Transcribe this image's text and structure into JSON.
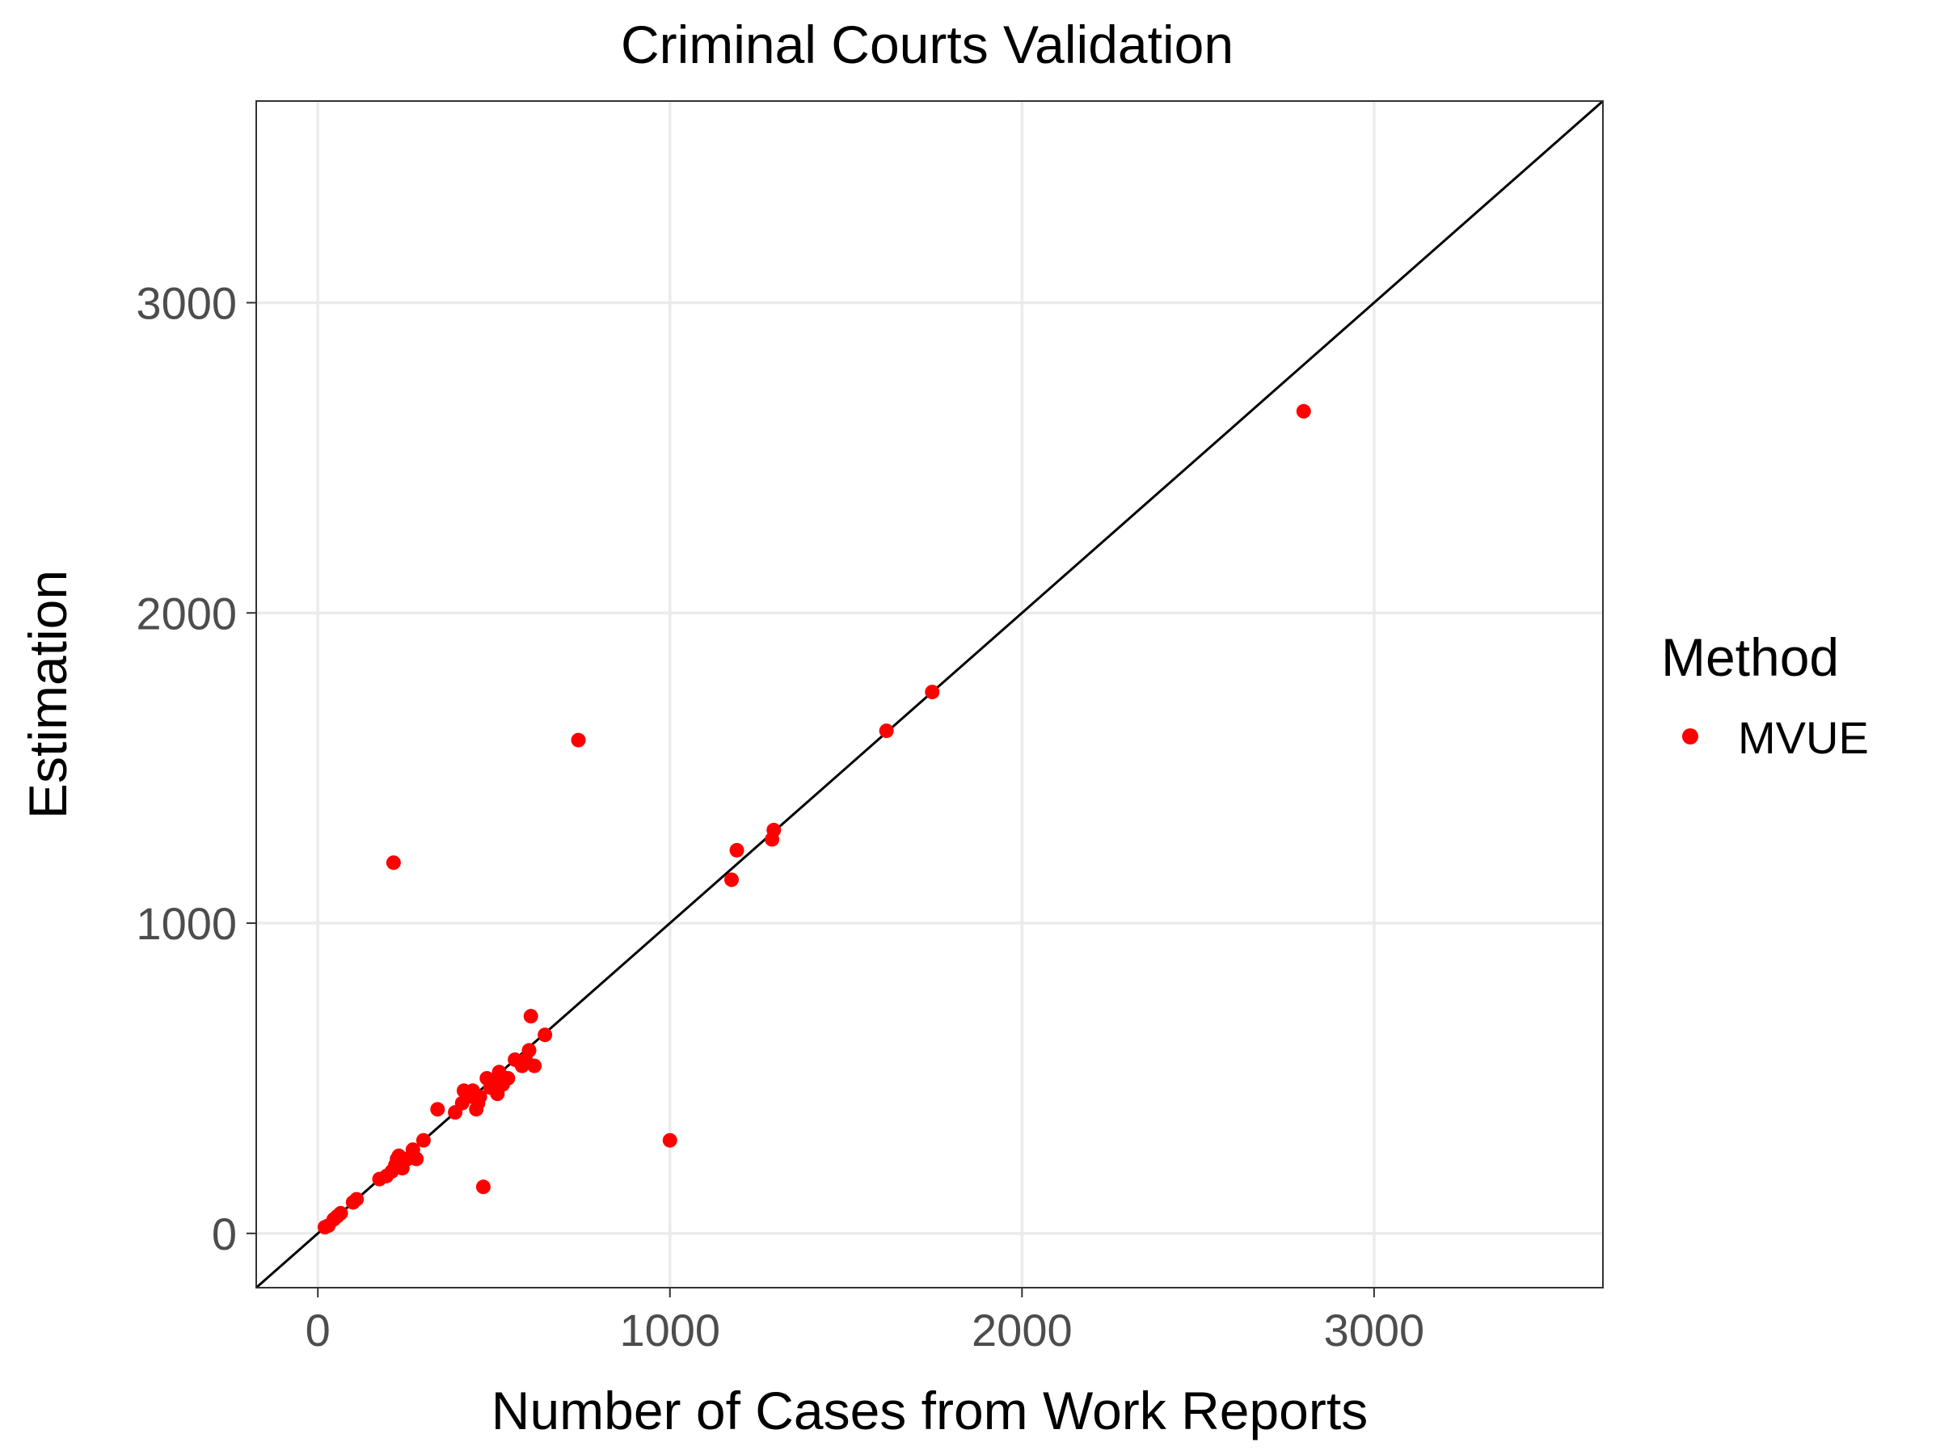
{
  "chart_data": {
    "type": "scatter",
    "title": "Criminal Courts Validation",
    "xlabel": "Number of Cases from Work Reports",
    "ylabel": "Estimation",
    "xlim": [
      -175,
      3650
    ],
    "ylim": [
      -175,
      3650
    ],
    "x_ticks": [
      0,
      1000,
      2000,
      3000
    ],
    "y_ticks": [
      0,
      1000,
      2000,
      3000
    ],
    "x_tick_labels": [
      "0",
      "1000",
      "2000",
      "3000"
    ],
    "y_tick_labels": [
      "0",
      "1000",
      "2000",
      "3000"
    ],
    "grid": true,
    "reference_line": {
      "type": "identity",
      "slope": 1,
      "intercept": 0,
      "color": "#000000"
    },
    "legend": {
      "title": "Method",
      "position": "right",
      "entries": [
        {
          "name": "MVUE",
          "color": "#ff0000"
        }
      ]
    },
    "series": [
      {
        "name": "MVUE",
        "color": "#ff0000",
        "points": [
          [
            20,
            20
          ],
          [
            30,
            25
          ],
          [
            45,
            45
          ],
          [
            55,
            55
          ],
          [
            65,
            65
          ],
          [
            100,
            100
          ],
          [
            110,
            110
          ],
          [
            175,
            175
          ],
          [
            195,
            185
          ],
          [
            210,
            200
          ],
          [
            220,
            220
          ],
          [
            225,
            240
          ],
          [
            230,
            250
          ],
          [
            240,
            210
          ],
          [
            255,
            240
          ],
          [
            270,
            270
          ],
          [
            280,
            240
          ],
          [
            300,
            300
          ],
          [
            340,
            400
          ],
          [
            390,
            390
          ],
          [
            410,
            420
          ],
          [
            415,
            460
          ],
          [
            425,
            440
          ],
          [
            440,
            460
          ],
          [
            450,
            400
          ],
          [
            455,
            420
          ],
          [
            460,
            440
          ],
          [
            470,
            150
          ],
          [
            480,
            500
          ],
          [
            490,
            470
          ],
          [
            500,
            480
          ],
          [
            510,
            450
          ],
          [
            515,
            520
          ],
          [
            525,
            480
          ],
          [
            540,
            500
          ],
          [
            560,
            560
          ],
          [
            580,
            540
          ],
          [
            590,
            560
          ],
          [
            600,
            590
          ],
          [
            605,
            700
          ],
          [
            615,
            540
          ],
          [
            645,
            640
          ],
          [
            740,
            1590
          ],
          [
            1000,
            300
          ],
          [
            215,
            1195
          ],
          [
            1175,
            1140
          ],
          [
            1190,
            1235
          ],
          [
            1290,
            1270
          ],
          [
            1295,
            1300
          ],
          [
            1615,
            1620
          ],
          [
            1745,
            1745
          ],
          [
            2800,
            2650
          ]
        ]
      }
    ]
  }
}
